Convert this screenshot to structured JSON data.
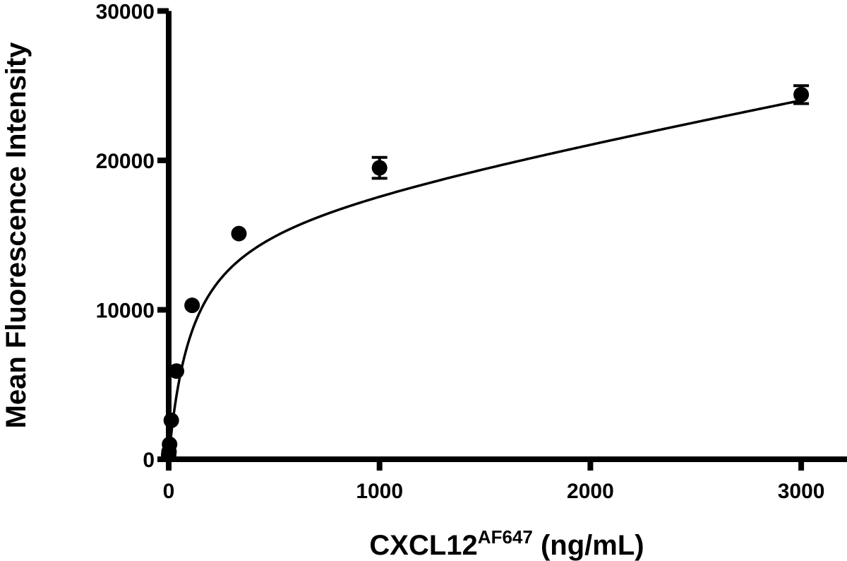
{
  "chart_data": {
    "type": "scatter",
    "xlabel": {
      "main": "CXCL12",
      "superscript": "AF647",
      "unit": " (ng/mL)"
    },
    "ylabel": "Mean Fluorescence Intensity",
    "xlim": [
      0,
      3200
    ],
    "ylim": [
      0,
      30000
    ],
    "x_ticks": [
      0,
      1000,
      2000,
      3000
    ],
    "x_tick_labels": [
      "0",
      "1000",
      "2000",
      "3000"
    ],
    "y_ticks": [
      0,
      10000,
      20000,
      30000
    ],
    "y_tick_labels": [
      "0",
      "10000",
      "20000",
      "30000"
    ],
    "grid": false,
    "series": [
      {
        "points": [
          {
            "x": 0,
            "y": 300,
            "err": 0
          },
          {
            "x": 1.4,
            "y": 500,
            "err": 0
          },
          {
            "x": 4.1,
            "y": 1000,
            "err": 0
          },
          {
            "x": 12.3,
            "y": 2600,
            "err": 0
          },
          {
            "x": 37,
            "y": 5900,
            "err": 0
          },
          {
            "x": 111,
            "y": 10300,
            "err": 0
          },
          {
            "x": 333,
            "y": 15100,
            "err": 0
          },
          {
            "x": 1000,
            "y": 19500,
            "err": 700
          },
          {
            "x": 3000,
            "y": 24400,
            "err": 600
          }
        ],
        "fit": {
          "model": "one-site-specific-plus-nonspecific",
          "bmax": 16500,
          "kd": 110,
          "ns": 2.7
        }
      }
    ]
  }
}
